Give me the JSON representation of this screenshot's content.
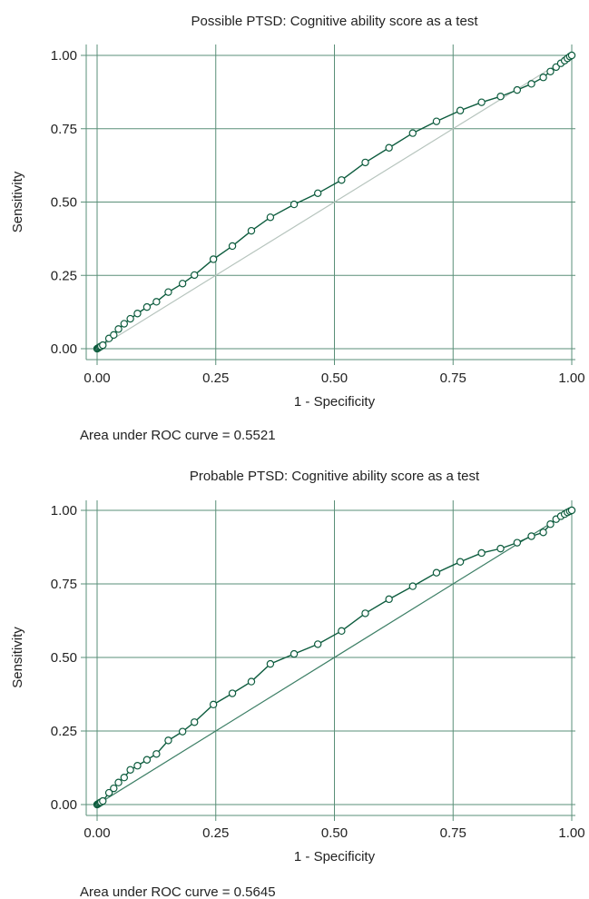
{
  "colors": {
    "grid": "#5a8f78",
    "curve": "#0d5c3e",
    "refline_light": "#b6c4bd",
    "refline_dark": "#3d7f66"
  },
  "chart_data": [
    {
      "type": "line",
      "title": "Possible PTSD: Cognitive ability score as a test",
      "xlabel": "1 - Specificity",
      "ylabel": "Sensitivity",
      "xlim": [
        0,
        1
      ],
      "ylim": [
        0,
        1
      ],
      "xticks": [
        "0.00",
        "0.25",
        "0.50",
        "0.75",
        "1.00"
      ],
      "yticks": [
        "0.00",
        "0.25",
        "0.50",
        "0.75",
        "1.00"
      ],
      "grid": true,
      "reference_line": "diagonal",
      "reference_style": "light",
      "auc_text": "Area under ROC curve = 0.5521",
      "series": [
        {
          "x": [
            0.0,
            0.002,
            0.004,
            0.006,
            0.008,
            0.012,
            0.025,
            0.035,
            0.045,
            0.057,
            0.07,
            0.085,
            0.105,
            0.125,
            0.15,
            0.18,
            0.205,
            0.245,
            0.285,
            0.325,
            0.365,
            0.415,
            0.465,
            0.515,
            0.565,
            0.615,
            0.665,
            0.715,
            0.765,
            0.81,
            0.85,
            0.885,
            0.915,
            0.94,
            0.955,
            0.967,
            0.977,
            0.985,
            0.991,
            0.996,
            1.0
          ],
          "y": [
            0.0,
            0.002,
            0.004,
            0.006,
            0.008,
            0.012,
            0.035,
            0.047,
            0.067,
            0.085,
            0.102,
            0.12,
            0.142,
            0.16,
            0.193,
            0.222,
            0.251,
            0.305,
            0.35,
            0.402,
            0.448,
            0.492,
            0.53,
            0.575,
            0.635,
            0.685,
            0.735,
            0.775,
            0.812,
            0.84,
            0.86,
            0.882,
            0.903,
            0.925,
            0.945,
            0.96,
            0.973,
            0.982,
            0.99,
            0.996,
            1.0
          ]
        }
      ]
    },
    {
      "type": "line",
      "title": "Probable PTSD: Cognitive ability score as a test",
      "xlabel": "1 - Specificity",
      "ylabel": "Sensitivity",
      "xlim": [
        0,
        1
      ],
      "ylim": [
        0,
        1
      ],
      "xticks": [
        "0.00",
        "0.25",
        "0.50",
        "0.75",
        "1.00"
      ],
      "yticks": [
        "0.00",
        "0.25",
        "0.50",
        "0.75",
        "1.00"
      ],
      "grid": true,
      "reference_line": "diagonal",
      "reference_style": "dark",
      "auc_text": "Area under ROC curve = 0.5645",
      "series": [
        {
          "x": [
            0.0,
            0.002,
            0.004,
            0.006,
            0.008,
            0.012,
            0.025,
            0.035,
            0.045,
            0.057,
            0.07,
            0.085,
            0.105,
            0.125,
            0.15,
            0.18,
            0.205,
            0.245,
            0.285,
            0.325,
            0.365,
            0.415,
            0.465,
            0.515,
            0.565,
            0.615,
            0.665,
            0.715,
            0.765,
            0.81,
            0.85,
            0.885,
            0.915,
            0.94,
            0.955,
            0.967,
            0.977,
            0.985,
            0.991,
            0.996,
            1.0
          ],
          "y": [
            0.0,
            0.002,
            0.004,
            0.006,
            0.008,
            0.012,
            0.04,
            0.055,
            0.075,
            0.092,
            0.118,
            0.132,
            0.152,
            0.172,
            0.218,
            0.248,
            0.28,
            0.34,
            0.378,
            0.418,
            0.478,
            0.512,
            0.545,
            0.59,
            0.65,
            0.698,
            0.742,
            0.788,
            0.825,
            0.855,
            0.87,
            0.89,
            0.912,
            0.925,
            0.953,
            0.97,
            0.98,
            0.987,
            0.993,
            0.997,
            1.0
          ]
        }
      ]
    }
  ]
}
